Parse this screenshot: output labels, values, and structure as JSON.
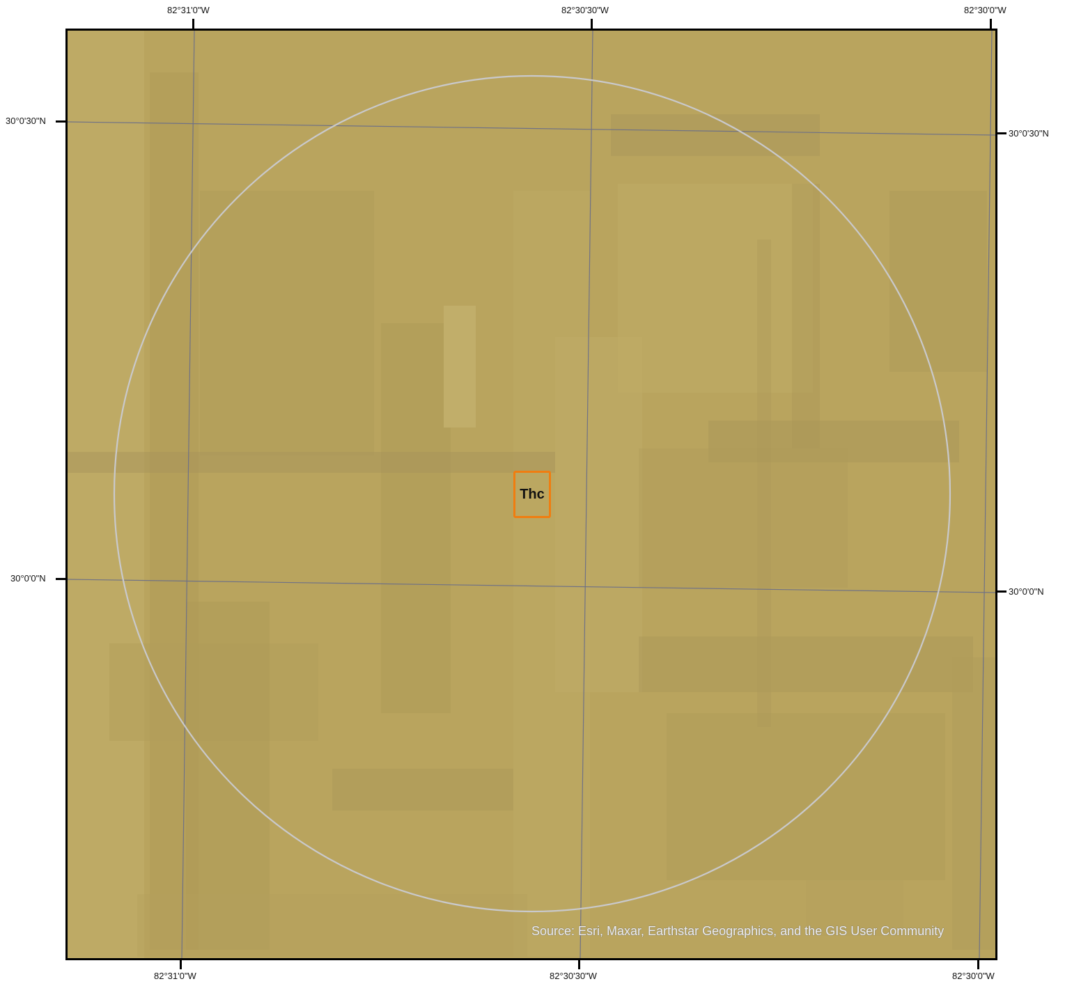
{
  "map": {
    "colors": {
      "imagery_tint": "#b9a45e",
      "graticule": "#6f7186",
      "buffer_circle": "#c9c9cc",
      "site_outline": "#f07d10"
    },
    "site_label": "Thc",
    "attribution": "Source: Esri, Maxar, Earthstar Geographics, and the GIS User Community",
    "graticule_labels": {
      "top": [
        "82°31'0\"W",
        "82°30'30\"W",
        "82°30'0\"W"
      ],
      "bottom": [
        "82°31'0\"W",
        "82°30'30\"W",
        "82°30'0\"W"
      ],
      "left": [
        "30°0'30\"N",
        "30°0'0\"N"
      ],
      "right": [
        "30°0'30\"N",
        "30°0'0\"N"
      ]
    }
  }
}
